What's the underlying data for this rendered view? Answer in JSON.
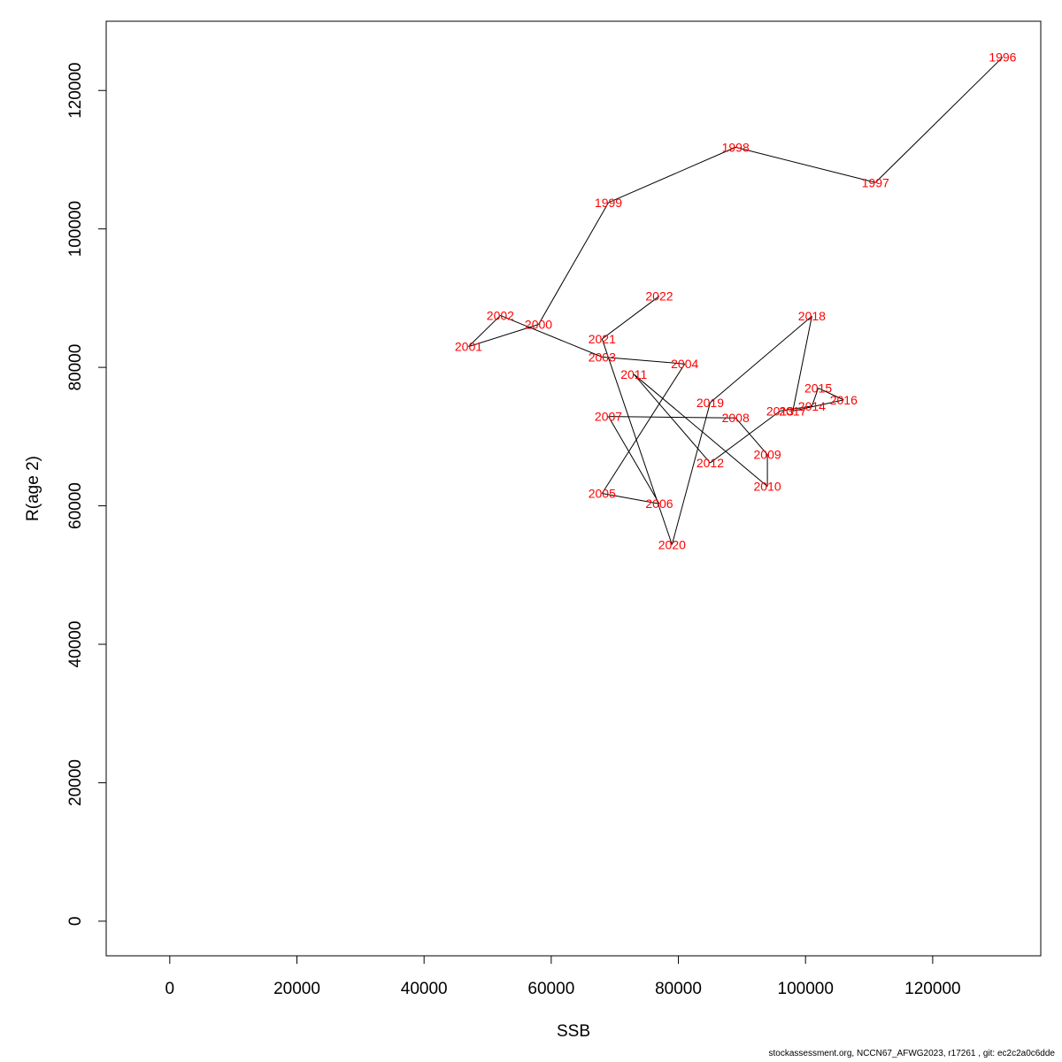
{
  "chart_data": {
    "type": "line",
    "xlabel": "SSB",
    "ylabel": "R(age 2)",
    "xlim": [
      -10000,
      137000
    ],
    "ylim": [
      -5000,
      130000
    ],
    "x_ticks": [
      0,
      20000,
      40000,
      60000,
      80000,
      100000,
      120000
    ],
    "y_ticks": [
      0,
      20000,
      40000,
      60000,
      80000,
      100000,
      120000
    ],
    "x_tick_labels": [
      "0",
      "20000",
      "40000",
      "60000",
      "80000",
      "100000",
      "120000"
    ],
    "y_tick_labels": [
      "0",
      "20000",
      "40000",
      "60000",
      "80000",
      "100000",
      "120000"
    ],
    "grid": false,
    "line_color": "#000000",
    "label_color": "#ff0000",
    "points": [
      {
        "year": "1996",
        "ssb": 131000,
        "r": 124800
      },
      {
        "year": "1997",
        "ssb": 111000,
        "r": 106700
      },
      {
        "year": "1998",
        "ssb": 89000,
        "r": 111800
      },
      {
        "year": "1999",
        "ssb": 69000,
        "r": 103800
      },
      {
        "year": "2000",
        "ssb": 58000,
        "r": 86200
      },
      {
        "year": "2001",
        "ssb": 47000,
        "r": 83000
      },
      {
        "year": "2002",
        "ssb": 52000,
        "r": 87500
      },
      {
        "year": "2003",
        "ssb": 68000,
        "r": 81500
      },
      {
        "year": "2004",
        "ssb": 81000,
        "r": 80500
      },
      {
        "year": "2005",
        "ssb": 68000,
        "r": 61800
      },
      {
        "year": "2006",
        "ssb": 77000,
        "r": 60300
      },
      {
        "year": "2007",
        "ssb": 69000,
        "r": 72900
      },
      {
        "year": "2008",
        "ssb": 89000,
        "r": 72700
      },
      {
        "year": "2009",
        "ssb": 94000,
        "r": 67400
      },
      {
        "year": "2010",
        "ssb": 94000,
        "r": 62800
      },
      {
        "year": "2011",
        "ssb": 73000,
        "r": 79000
      },
      {
        "year": "2012",
        "ssb": 85000,
        "r": 66200
      },
      {
        "year": "2013",
        "ssb": 96000,
        "r": 73700
      },
      {
        "year": "2014",
        "ssb": 101000,
        "r": 74400
      },
      {
        "year": "2015",
        "ssb": 102000,
        "r": 77000
      },
      {
        "year": "2016",
        "ssb": 106000,
        "r": 75300
      },
      {
        "year": "2017",
        "ssb": 98000,
        "r": 73700
      },
      {
        "year": "2018",
        "ssb": 101000,
        "r": 87400
      },
      {
        "year": "2019",
        "ssb": 85000,
        "r": 74900
      },
      {
        "year": "2020",
        "ssb": 79000,
        "r": 54400
      },
      {
        "year": "2021",
        "ssb": 68000,
        "r": 84100
      },
      {
        "year": "2022",
        "ssb": 77000,
        "r": 90300
      }
    ]
  },
  "footer": "stockassessment.org, NCCN67_AFWG2023, r17261 , git: ec2c2a0c6dde"
}
